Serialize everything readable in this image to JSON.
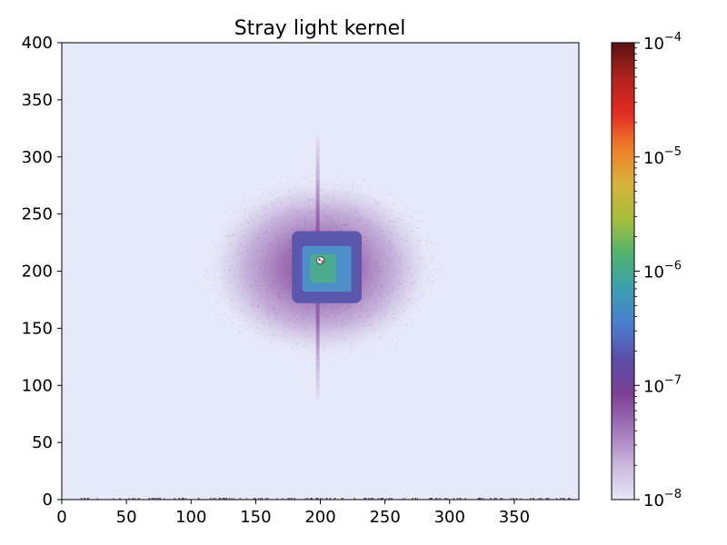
{
  "chart_data": {
    "type": "heatmap",
    "title": "Stray light kernel",
    "xlabel": "",
    "ylabel": "",
    "xlim": [
      0,
      400
    ],
    "ylim": [
      0,
      400
    ],
    "x_ticks": [
      0,
      50,
      100,
      150,
      200,
      250,
      300,
      350
    ],
    "y_ticks": [
      0,
      50,
      100,
      150,
      200,
      250,
      300,
      350,
      400
    ],
    "x_tick_labels": [
      "0",
      "50",
      "100",
      "150",
      "200",
      "250",
      "300",
      "350"
    ],
    "y_tick_labels": [
      "0",
      "50",
      "100",
      "150",
      "200",
      "250",
      "300",
      "350",
      "400"
    ],
    "grid": false,
    "colorbar": {
      "scale": "log",
      "range": [
        1e-08,
        0.0001
      ],
      "tick_values": [
        1e-08,
        1e-07,
        1e-06,
        1e-05,
        0.0001
      ],
      "tick_labels": [
        {
          "base": "10",
          "exp": "−8"
        },
        {
          "base": "10",
          "exp": "−7"
        },
        {
          "base": "10",
          "exp": "−6"
        },
        {
          "base": "10",
          "exp": "−5"
        },
        {
          "base": "10",
          "exp": "−4"
        }
      ],
      "colormap": [
        "#e6e8f8",
        "#c9b6dc",
        "#a277bb",
        "#7b3f94",
        "#5b4ea8",
        "#4a7fcf",
        "#3a9fb0",
        "#52b36f",
        "#a7be3b",
        "#d8b23a",
        "#ee7f2a",
        "#e12b22",
        "#b0231c",
        "#5a1212"
      ]
    },
    "background_color": "#e6e9f8",
    "kernel": {
      "center": [
        200,
        203
      ],
      "halo_radius_x": 88,
      "halo_radius_y": 78,
      "halo_level": 3e-08,
      "core_box": {
        "x": [
          178,
          232
        ],
        "y": [
          172,
          235
        ],
        "level": 1.5e-07
      },
      "inner_box": {
        "x": [
          186,
          224
        ],
        "y": [
          182,
          222
        ],
        "level": 5e-07
      },
      "innermost_box": {
        "x": [
          192,
          212
        ],
        "y": [
          190,
          215
        ],
        "level": 1.2e-06
      },
      "vertical_streak": {
        "x": 198,
        "y": [
          88,
          318
        ],
        "level": 4e-08
      },
      "peak_level": 0.0001
    }
  }
}
